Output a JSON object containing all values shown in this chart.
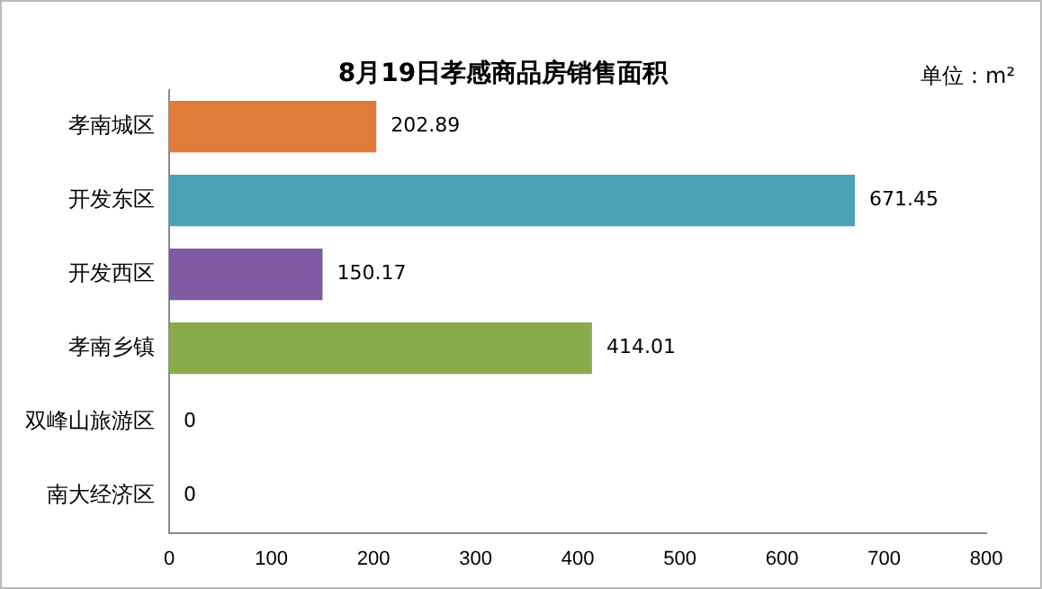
{
  "chart_data": {
    "type": "bar",
    "orientation": "horizontal",
    "title": "8月19日孝感商品房销售面积",
    "annotations": [
      "单位：m²"
    ],
    "categories": [
      "孝南城区",
      "开发东区",
      "开发西区",
      "孝南乡镇",
      "双峰山旅游区",
      "南大经济区"
    ],
    "values": [
      202.89,
      671.45,
      150.17,
      414.01,
      0,
      0
    ],
    "colors": [
      "#e07b39",
      "#4aa3b5",
      "#7e5aa0",
      "#8aab4a",
      "#8aab4a",
      "#8aab4a"
    ],
    "xlim": [
      0,
      800
    ],
    "xticks": [
      0,
      100,
      200,
      300,
      400,
      500,
      600,
      700,
      800
    ],
    "data_labels": true,
    "grid": false,
    "legend": false
  }
}
